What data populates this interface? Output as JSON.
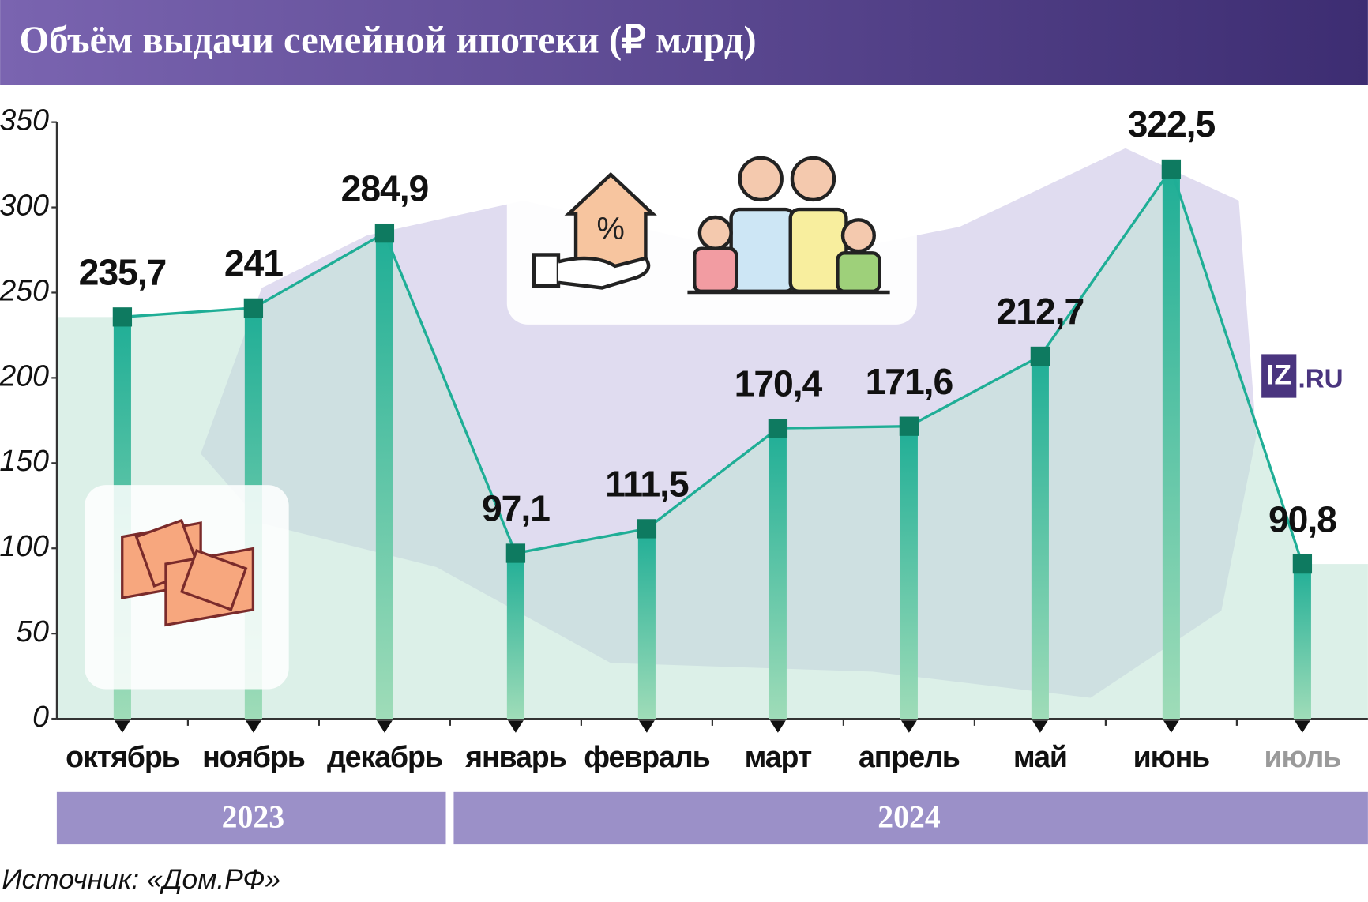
{
  "chart_data": {
    "type": "line",
    "title": "Объём выдачи семейной ипотеки (₽ млрд)",
    "categories": [
      "октябрь",
      "ноябрь",
      "декабрь",
      "январь",
      "февраль",
      "март",
      "апрель",
      "май",
      "июнь",
      "июль"
    ],
    "category_colors": [
      "#111111",
      "#111111",
      "#111111",
      "#111111",
      "#111111",
      "#111111",
      "#111111",
      "#111111",
      "#111111",
      "#9a9a9a"
    ],
    "values": [
      235.7,
      241,
      284.9,
      97.1,
      111.5,
      170.4,
      171.6,
      212.7,
      322.5,
      90.8
    ],
    "value_labels": [
      "235,7",
      "241",
      "284,9",
      "97,1",
      "111,5",
      "170,4",
      "171,6",
      "212,7",
      "322,5",
      "90,8"
    ],
    "color": "#1fae96",
    "ylim": [
      0,
      350
    ],
    "yticks": [
      0,
      50,
      100,
      150,
      200,
      250,
      300,
      350
    ],
    "year_groups": [
      "2023",
      "2024"
    ],
    "source": "Источник: «Дом.РФ»",
    "logo": [
      "IZ",
      ".RU"
    ]
  }
}
